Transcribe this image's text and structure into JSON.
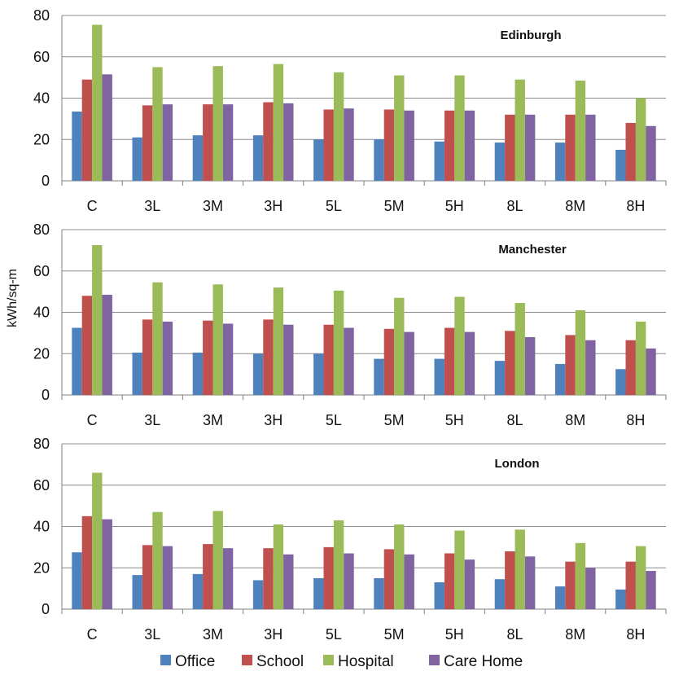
{
  "chart_data": {
    "type": "bar",
    "ylabel": "kWh/sq-m",
    "ylim": [
      0,
      80
    ],
    "yticks": [
      0,
      20,
      40,
      60,
      80
    ],
    "grid": true,
    "legend_position": "bottom",
    "categories": [
      "C",
      "3L",
      "3M",
      "3H",
      "5L",
      "5M",
      "5H",
      "8L",
      "8M",
      "8H"
    ],
    "series_names": [
      "Office",
      "School",
      "Hospital",
      "Care Home"
    ],
    "colors": [
      "#4f81bd",
      "#c0504d",
      "#9bbb59",
      "#8064a2"
    ],
    "panels": [
      {
        "title": "Edinburgh",
        "series": [
          {
            "name": "Office",
            "values": [
              33.5,
              21,
              22,
              22,
              20,
              20,
              19,
              18.5,
              18.5,
              15
            ]
          },
          {
            "name": "School",
            "values": [
              49,
              36.5,
              37,
              38,
              34.5,
              34.5,
              34,
              32,
              32,
              28
            ]
          },
          {
            "name": "Hospital",
            "values": [
              75.5,
              55,
              55.5,
              56.5,
              52.5,
              51,
              51,
              49,
              48.5,
              40
            ]
          },
          {
            "name": "Care Home",
            "values": [
              51.5,
              37,
              37,
              37.5,
              35,
              34,
              34,
              32,
              32,
              26.5
            ]
          }
        ]
      },
      {
        "title": "Manchester",
        "series": [
          {
            "name": "Office",
            "values": [
              32.5,
              20.5,
              20.5,
              20,
              20,
              17.5,
              17.5,
              16.5,
              15,
              12.5
            ]
          },
          {
            "name": "School",
            "values": [
              48,
              36.5,
              36,
              36.5,
              34,
              32,
              32.5,
              31,
              29,
              26.5
            ]
          },
          {
            "name": "Hospital",
            "values": [
              72.5,
              54.5,
              53.5,
              52,
              50.5,
              47,
              47.5,
              44.5,
              41,
              35.5
            ]
          },
          {
            "name": "Care Home",
            "values": [
              48.5,
              35.5,
              34.5,
              34,
              32.5,
              30.5,
              30.5,
              28,
              26.5,
              22.5
            ]
          }
        ]
      },
      {
        "title": "London",
        "series": [
          {
            "name": "Office",
            "values": [
              27.5,
              16.5,
              17,
              14,
              15,
              15,
              13,
              14.5,
              11,
              9.5
            ]
          },
          {
            "name": "School",
            "values": [
              45,
              31,
              31.5,
              29.5,
              30,
              29,
              27,
              28,
              23,
              23
            ]
          },
          {
            "name": "Hospital",
            "values": [
              66,
              47,
              47.5,
              41,
              43,
              41,
              38,
              38.5,
              32,
              30.5
            ]
          },
          {
            "name": "Care Home",
            "values": [
              43.5,
              30.5,
              29.5,
              26.5,
              27,
              26.5,
              24,
              25.5,
              20,
              18.5
            ]
          }
        ]
      }
    ]
  }
}
